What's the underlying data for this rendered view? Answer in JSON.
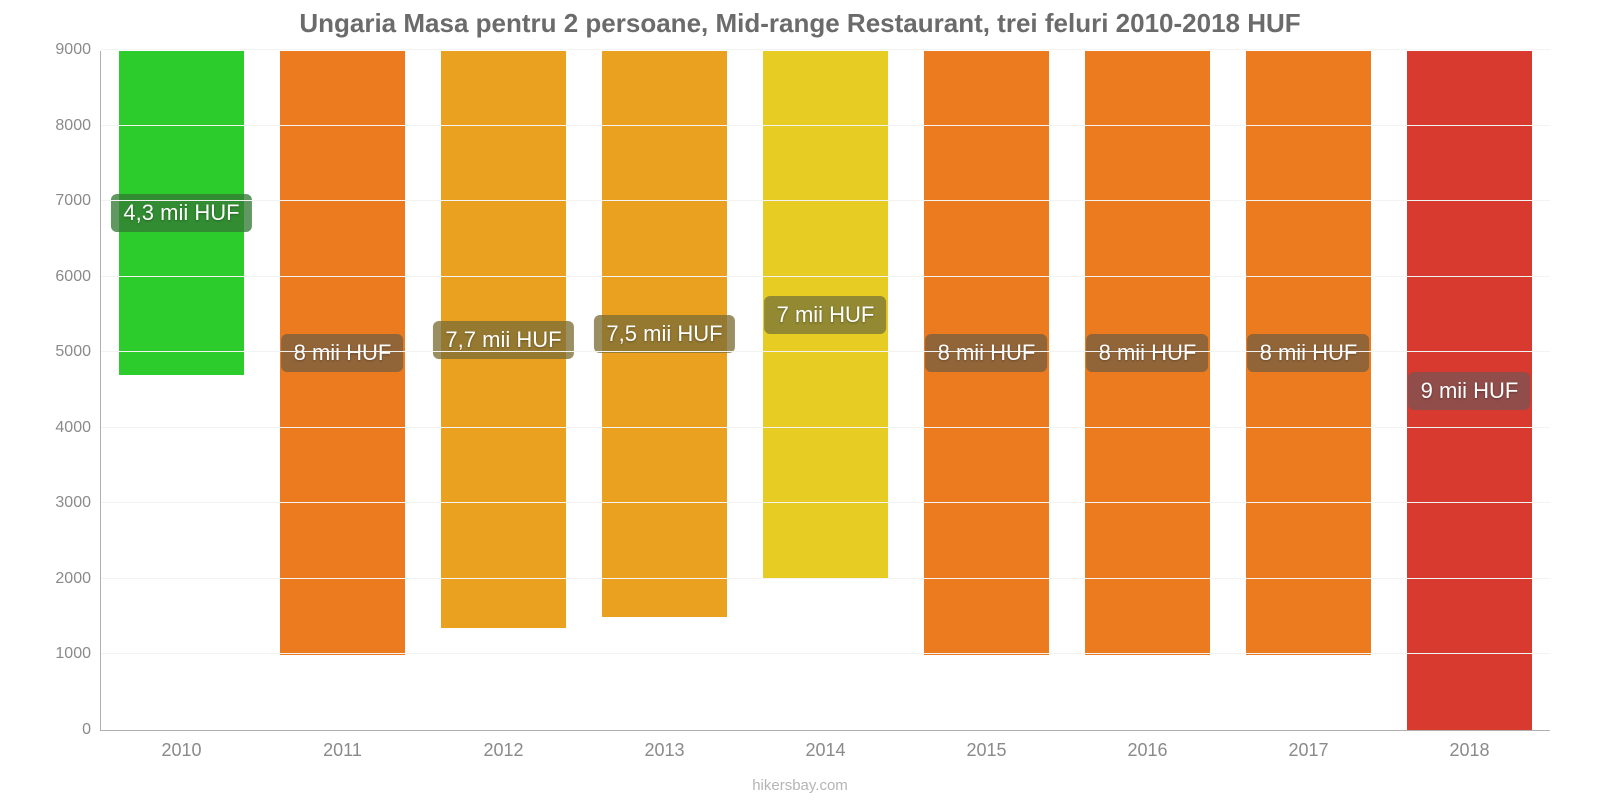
{
  "chart": {
    "type": "bar",
    "title": "Ungaria Masa pentru 2 persoane, Mid-range Restaurant, trei feluri 2010-2018 HUF",
    "title_fontsize": 26,
    "title_color": "#6b6b6b",
    "background_color": "#ffffff",
    "grid_color": "#f3f3f3",
    "axis_color": "#b0b0b0",
    "tick_label_color": "#8a8a8a",
    "tick_label_fontsize": 16,
    "xaxis": {
      "categories": [
        "2010",
        "2011",
        "2012",
        "2013",
        "2014",
        "2015",
        "2016",
        "2017",
        "2018"
      ],
      "label_fontsize": 18
    },
    "yaxis": {
      "min": 0,
      "max": 9000,
      "tick_step": 1000,
      "tick_labels": [
        "0",
        "1000",
        "2000",
        "3000",
        "4000",
        "5000",
        "6000",
        "7000",
        "8000",
        "9000"
      ]
    },
    "bars": [
      {
        "value": 4300,
        "label": "4,3 mii HUF",
        "color": "#2bcc2b",
        "label_bg": "rgba(53,122,53,0.78)"
      },
      {
        "value": 8000,
        "label": "8 mii HUF",
        "color": "#ec7b1f",
        "label_bg": "rgba(120,95,65,0.78)"
      },
      {
        "value": 7650,
        "label": "7,7 mii HUF",
        "color": "#e9a11f",
        "label_bg": "rgba(125,110,55,0.78)"
      },
      {
        "value": 7500,
        "label": "7,5 mii HUF",
        "color": "#e9a11f",
        "label_bg": "rgba(125,110,55,0.78)"
      },
      {
        "value": 7000,
        "label": "7 mii HUF",
        "color": "#e7cc23",
        "label_bg": "rgba(122,118,55,0.78)"
      },
      {
        "value": 8000,
        "label": "8 mii HUF",
        "color": "#ec7b1f",
        "label_bg": "rgba(120,95,65,0.78)"
      },
      {
        "value": 8000,
        "label": "8 mii HUF",
        "color": "#ec7b1f",
        "label_bg": "rgba(120,95,65,0.78)"
      },
      {
        "value": 8000,
        "label": "8 mii HUF",
        "color": "#ec7b1f",
        "label_bg": "rgba(120,95,65,0.78)"
      },
      {
        "value": 9000,
        "label": "9 mii HUF",
        "color": "#d93a2f",
        "label_bg": "rgba(128,82,80,0.82)"
      }
    ],
    "bar_width_pct": 78,
    "data_label_fontsize": 22,
    "data_label_color": "#ffffff",
    "credit": "hikersbay.com",
    "credit_color": "#b5b5b5",
    "credit_fontsize": 15
  }
}
